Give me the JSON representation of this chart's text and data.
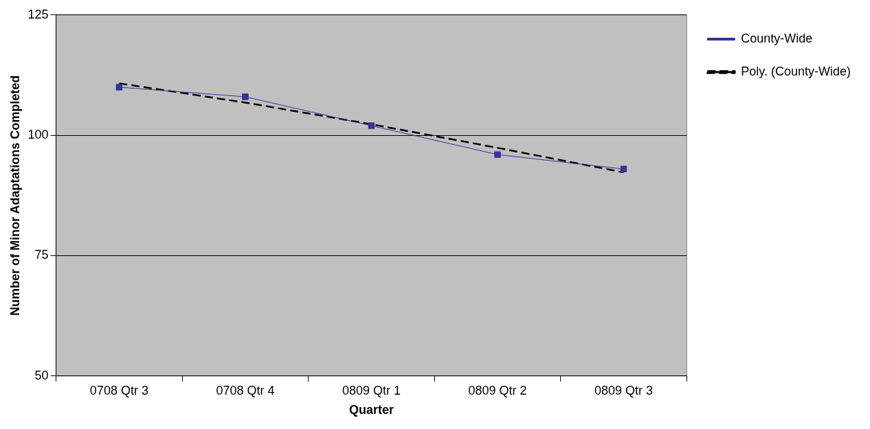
{
  "chart_data": {
    "type": "line",
    "xlabel": "Quarter",
    "ylabel": "Number of Minor Adaptations Completed",
    "categories": [
      "0708 Qtr 3",
      "0708 Qtr 4",
      "0809 Qtr 1",
      "0809 Qtr 2",
      "0809 Qtr 3"
    ],
    "series": [
      {
        "name": "County-Wide",
        "color": "#333399",
        "values": [
          110,
          108,
          102,
          96,
          93
        ],
        "marker": "square",
        "line_style": "solid"
      },
      {
        "name": "Poly. (County-Wide)",
        "color": "#000000",
        "values": [
          110.8,
          106.8,
          102.3,
          97.4,
          92.3
        ],
        "marker": "none",
        "line_style": "dashed"
      }
    ],
    "ylim": [
      50,
      125
    ],
    "yticks": [
      50,
      75,
      100,
      125
    ],
    "grid": "y",
    "legend": "right"
  }
}
